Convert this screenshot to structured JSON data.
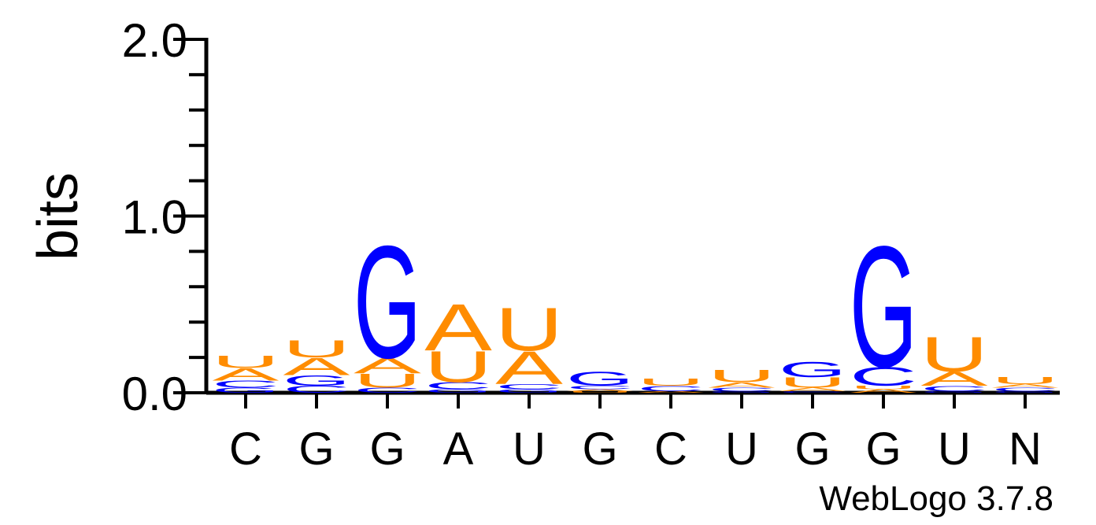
{
  "chart_data": {
    "type": "sequence-logo",
    "ylabel": "bits",
    "ylim": [
      0,
      2
    ],
    "y_ticks": [
      "0.0",
      "1.0",
      "2.0"
    ],
    "y_tick_values": [
      0,
      1,
      2
    ],
    "positions": [
      "C",
      "G",
      "G",
      "A",
      "U",
      "G",
      "C",
      "U",
      "G",
      "G",
      "U",
      "N"
    ],
    "stacks": [
      [
        {
          "letter": "G",
          "bits": 0.03
        },
        {
          "letter": "C",
          "bits": 0.04
        },
        {
          "letter": "A",
          "bits": 0.07
        },
        {
          "letter": "U",
          "bits": 0.07
        }
      ],
      [
        {
          "letter": "C",
          "bits": 0.04
        },
        {
          "letter": "G",
          "bits": 0.06
        },
        {
          "letter": "A",
          "bits": 0.1
        },
        {
          "letter": "U",
          "bits": 0.1
        }
      ],
      [
        {
          "letter": "C",
          "bits": 0.03
        },
        {
          "letter": "U",
          "bits": 0.08
        },
        {
          "letter": "A",
          "bits": 0.09
        },
        {
          "letter": "G",
          "bits": 0.65
        }
      ],
      [
        {
          "letter": "G",
          "bits": 0.02
        },
        {
          "letter": "C",
          "bits": 0.04
        },
        {
          "letter": "U",
          "bits": 0.18
        },
        {
          "letter": "A",
          "bits": 0.27
        }
      ],
      [
        {
          "letter": "G",
          "bits": 0.02
        },
        {
          "letter": "C",
          "bits": 0.03
        },
        {
          "letter": "A",
          "bits": 0.19
        },
        {
          "letter": "U",
          "bits": 0.25
        }
      ],
      [
        {
          "letter": "U",
          "bits": 0.01
        },
        {
          "letter": "A",
          "bits": 0.01
        },
        {
          "letter": "C",
          "bits": 0.02
        },
        {
          "letter": "G",
          "bits": 0.08
        }
      ],
      [
        {
          "letter": "A",
          "bits": 0.01
        },
        {
          "letter": "C",
          "bits": 0.03
        },
        {
          "letter": "U",
          "bits": 0.04
        }
      ],
      [
        {
          "letter": "G",
          "bits": 0.01
        },
        {
          "letter": "C",
          "bits": 0.02
        },
        {
          "letter": "A",
          "bits": 0.03
        },
        {
          "letter": "U",
          "bits": 0.07
        }
      ],
      [
        {
          "letter": "C",
          "bits": 0.01
        },
        {
          "letter": "A",
          "bits": 0.02
        },
        {
          "letter": "U",
          "bits": 0.06
        },
        {
          "letter": "G",
          "bits": 0.09
        }
      ],
      [
        {
          "letter": "A",
          "bits": 0.02
        },
        {
          "letter": "U",
          "bits": 0.02
        },
        {
          "letter": "C",
          "bits": 0.11
        },
        {
          "letter": "G",
          "bits": 0.7
        }
      ],
      [
        {
          "letter": "G",
          "bits": 0.01
        },
        {
          "letter": "C",
          "bits": 0.03
        },
        {
          "letter": "A",
          "bits": 0.08
        },
        {
          "letter": "U",
          "bits": 0.2
        }
      ],
      [
        {
          "letter": "G",
          "bits": 0.01
        },
        {
          "letter": "C",
          "bits": 0.02
        },
        {
          "letter": "A",
          "bits": 0.02
        },
        {
          "letter": "U",
          "bits": 0.04
        }
      ]
    ],
    "colors": {
      "A": "#ff8c00",
      "U": "#ff8c00",
      "G": "#0000ff",
      "C": "#0000ff"
    },
    "credit": "WebLogo 3.7.8"
  }
}
